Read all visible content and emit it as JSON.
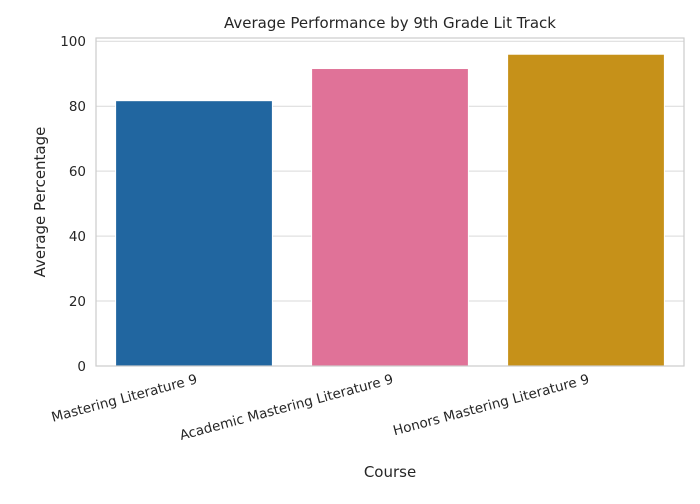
{
  "chart_data": {
    "type": "bar",
    "title": "Average Performance by 9th Grade Lit Track",
    "xlabel": "Course",
    "ylabel": "Average Percentage",
    "categories": [
      "Mastering Literature 9",
      "Academic Mastering Literature 9",
      "Honors Mastering Literature 9"
    ],
    "values": [
      81.7,
      91.6,
      96.0
    ],
    "colors": [
      "#2166a0",
      "#e07298",
      "#c69119"
    ],
    "ylim": [
      0,
      101
    ],
    "yticks": [
      0,
      20,
      40,
      60,
      80,
      100
    ],
    "grid": true,
    "legend": "none"
  }
}
